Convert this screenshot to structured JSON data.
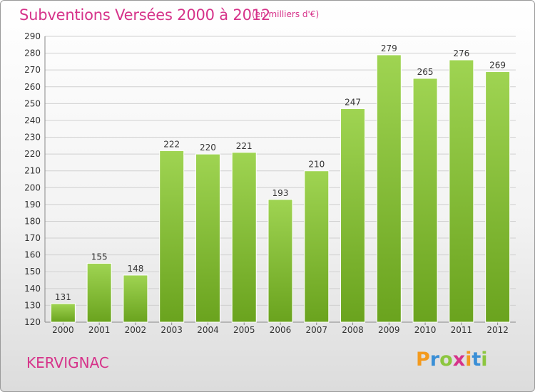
{
  "chart_data": {
    "type": "bar",
    "title": "Subventions Versées 2000 à 2012",
    "subtitle": "(en milliers d'€)",
    "categories": [
      "2000",
      "2001",
      "2002",
      "2003",
      "2004",
      "2005",
      "2006",
      "2007",
      "2008",
      "2009",
      "2010",
      "2011",
      "2012"
    ],
    "values": [
      131,
      155,
      148,
      222,
      220,
      221,
      193,
      210,
      247,
      279,
      265,
      276,
      269
    ],
    "ylim": [
      120,
      290
    ],
    "yticks": [
      120,
      130,
      140,
      150,
      160,
      170,
      180,
      190,
      200,
      210,
      220,
      230,
      240,
      250,
      260,
      270,
      280,
      290
    ],
    "grid": true,
    "bar_color": "#8cc63f"
  },
  "location_label": "KERVIGNAC",
  "brand": {
    "letters": [
      "P",
      "r",
      "o",
      "x",
      "i",
      "t",
      "i"
    ],
    "colors": [
      "#f39a1e",
      "#3a8fd6",
      "#8cc63f",
      "#d6338a",
      "#f39a1e",
      "#3a8fd6",
      "#8cc63f"
    ]
  }
}
